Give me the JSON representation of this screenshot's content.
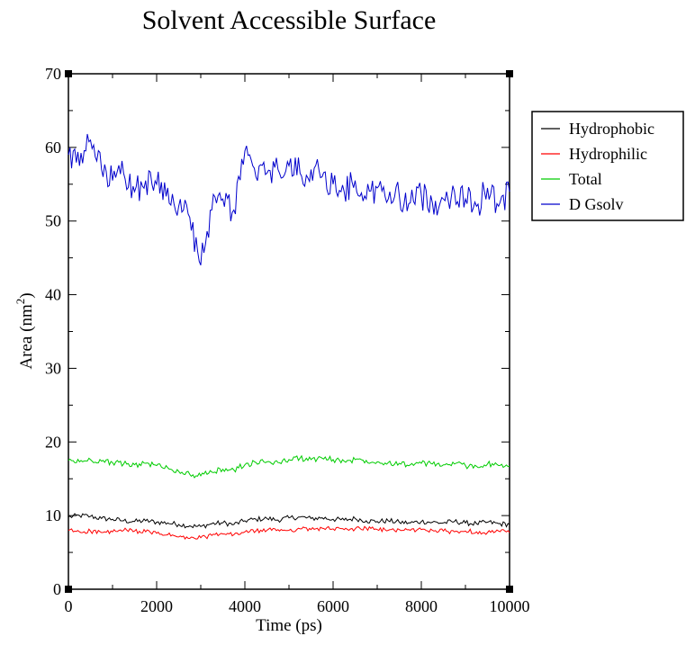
{
  "chart_data": {
    "type": "line",
    "title": "Solvent Accessible Surface",
    "xlabel": "Time (ps)",
    "ylabel": "Area (nm",
    "ylabel_sup": "2",
    "ylabel_end": ")",
    "xlim": [
      0,
      10000
    ],
    "ylim": [
      0,
      70
    ],
    "xticks": [
      0,
      2000,
      4000,
      6000,
      8000,
      10000
    ],
    "yticks": [
      0,
      10,
      20,
      30,
      40,
      50,
      60,
      70
    ],
    "legend_position": "right",
    "grid": false,
    "x": [
      0,
      250,
      500,
      750,
      1000,
      1250,
      1500,
      1750,
      2000,
      2250,
      2500,
      2750,
      3000,
      3250,
      3500,
      3750,
      4000,
      4250,
      4500,
      4750,
      5000,
      5250,
      5500,
      5750,
      6000,
      6250,
      6500,
      6750,
      7000,
      7250,
      7500,
      7750,
      8000,
      8250,
      8500,
      8750,
      9000,
      9250,
      9500,
      9750,
      10000
    ],
    "series": [
      {
        "name": "Hydrophobic",
        "color": "#000000",
        "values": [
          9.8,
          10.0,
          9.9,
          9.6,
          9.5,
          9.3,
          9.2,
          9.3,
          9.1,
          9.0,
          8.8,
          8.6,
          8.5,
          8.9,
          9.0,
          8.8,
          9.3,
          9.5,
          9.6,
          9.4,
          9.7,
          9.8,
          9.6,
          9.7,
          9.5,
          9.4,
          9.6,
          9.3,
          9.2,
          9.3,
          9.1,
          9.0,
          9.2,
          9.1,
          9.0,
          9.2,
          9.0,
          8.9,
          9.1,
          8.9,
          8.8
        ]
      },
      {
        "name": "Hydrophilic",
        "color": "#ff0000",
        "values": [
          8.0,
          7.8,
          7.9,
          7.7,
          7.8,
          8.0,
          7.9,
          7.8,
          7.6,
          7.4,
          7.1,
          6.9,
          7.0,
          7.3,
          7.5,
          7.4,
          7.8,
          7.9,
          8.0,
          8.1,
          8.0,
          8.2,
          8.1,
          8.3,
          8.2,
          8.1,
          8.2,
          8.3,
          8.1,
          8.0,
          8.1,
          8.0,
          8.1,
          8.0,
          7.9,
          7.8,
          7.9,
          7.8,
          7.7,
          7.9,
          7.7
        ]
      },
      {
        "name": "Total",
        "color": "#00cc00",
        "values": [
          17.5,
          17.3,
          17.6,
          17.4,
          17.2,
          17.0,
          16.9,
          17.1,
          16.8,
          16.5,
          16.0,
          15.6,
          15.4,
          15.9,
          16.3,
          16.2,
          16.9,
          17.2,
          17.3,
          17.2,
          17.6,
          17.8,
          17.6,
          17.8,
          17.6,
          17.4,
          17.6,
          17.5,
          17.3,
          17.2,
          17.1,
          16.9,
          17.1,
          17.0,
          16.9,
          17.0,
          16.8,
          16.7,
          17.0,
          16.8,
          16.7
        ]
      },
      {
        "name": "D Gsolv",
        "color": "#0000cc",
        "values": [
          59.0,
          57.5,
          61.0,
          57.0,
          55.5,
          56.5,
          54.0,
          55.5,
          55.0,
          54.5,
          52.0,
          50.5,
          44.0,
          51.5,
          53.0,
          51.5,
          59.5,
          56.0,
          56.5,
          57.0,
          57.5,
          56.5,
          57.0,
          56.0,
          55.0,
          54.0,
          55.5,
          53.0,
          54.5,
          53.0,
          53.5,
          52.5,
          53.5,
          52.5,
          53.0,
          54.0,
          53.0,
          52.0,
          54.5,
          52.0,
          54.0
        ]
      }
    ]
  }
}
